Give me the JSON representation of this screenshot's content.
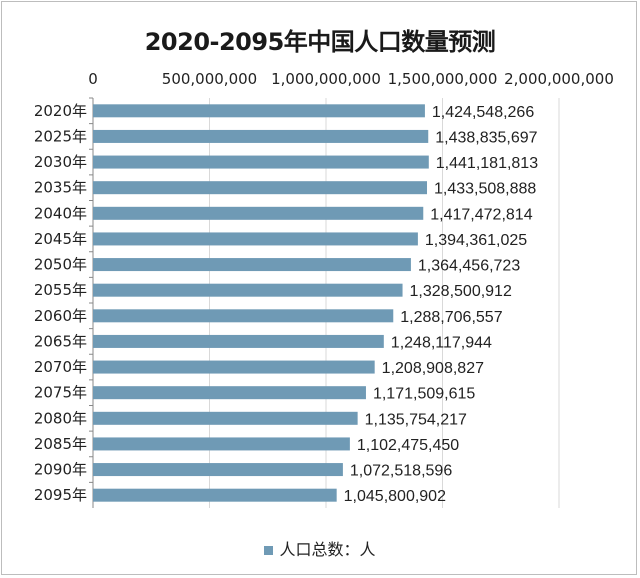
{
  "chart_data": {
    "type": "bar",
    "orientation": "horizontal",
    "title": "2020-2095年中国人口数量预测",
    "categories": [
      "2020年",
      "2025年",
      "2030年",
      "2035年",
      "2040年",
      "2045年",
      "2050年",
      "2055年",
      "2060年",
      "2065年",
      "2070年",
      "2075年",
      "2080年",
      "2085年",
      "2090年",
      "2095年"
    ],
    "series": [
      {
        "name": "人口总数：人",
        "values": [
          1424548266,
          1438835697,
          1441181813,
          1433508888,
          1417472814,
          1394361025,
          1364456723,
          1328500912,
          1288706557,
          1248117944,
          1208908827,
          1171509615,
          1135754217,
          1102475450,
          1072518596,
          1045800902
        ],
        "color": "#6f9ab5"
      }
    ],
    "data_labels": [
      "1,424,548,266",
      "1,438,835,697",
      "1,441,181,813",
      "1,433,508,888",
      "1,417,472,814",
      "1,394,361,025",
      "1,364,456,723",
      "1,328,500,912",
      "1,288,706,557",
      "1,248,117,944",
      "1,208,908,827",
      "1,171,509,615",
      "1,135,754,217",
      "1,102,475,450",
      "1,072,518,596",
      "1,045,800,902"
    ],
    "xlim": [
      0,
      2000000000
    ],
    "x_ticks": [
      0,
      500000000,
      1000000000,
      1500000000,
      2000000000
    ],
    "x_tick_labels": [
      "0",
      "500,000,000",
      "1,000,000,000",
      "1,500,000,000",
      "2,000,000,000"
    ],
    "x_axis_position": "top",
    "grid": true,
    "legend_position": "bottom"
  }
}
